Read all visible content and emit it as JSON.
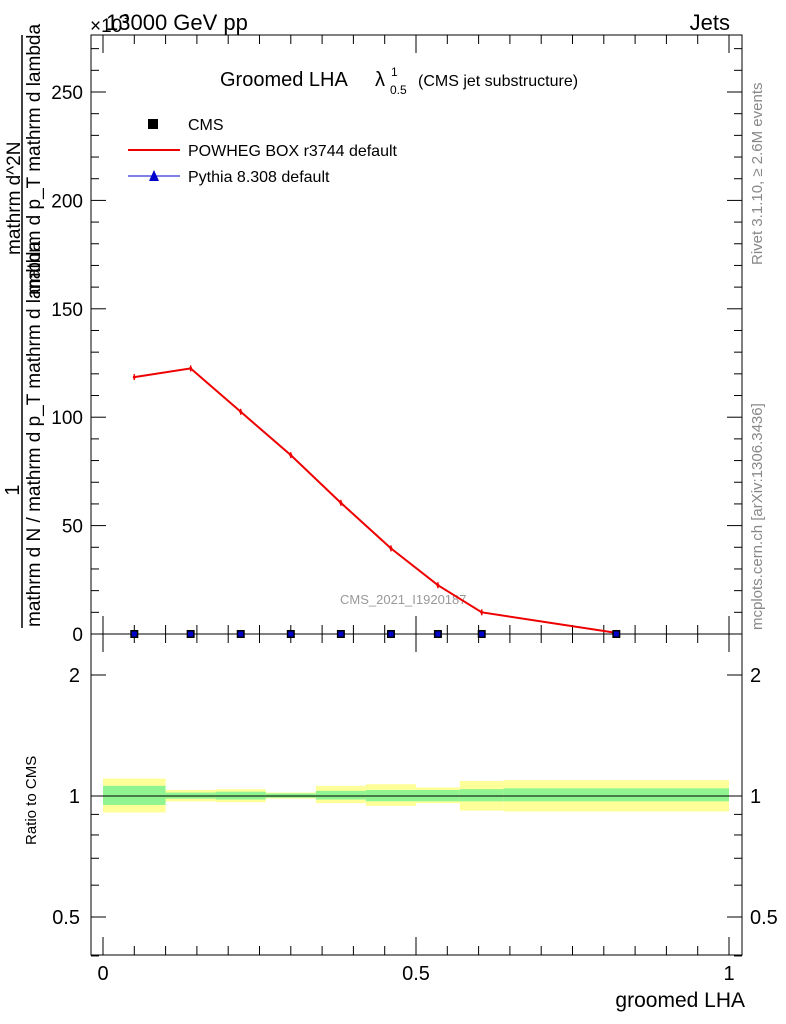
{
  "header": {
    "energy": "13000 GeV pp",
    "process": "Jets",
    "scale_prefix": "×10",
    "scale_exp": "3"
  },
  "side": {
    "rivet": "Rivet 3.1.10, ≥ 2.6M events",
    "mcplots": "mcplots.cern.ch [arXiv:1306.3436]"
  },
  "legend": {
    "title_main": "Groomed LHA",
    "title_lambda": "λ",
    "title_sup": "1",
    "title_sub": "0.5",
    "title_paren": "(CMS jet substructure)",
    "entries": [
      {
        "label": "CMS",
        "marker": "square"
      },
      {
        "label": "POWHEG BOX r3744 default",
        "marker": "line"
      },
      {
        "label": "Pythia 8.308 default",
        "marker": "triangle"
      }
    ]
  },
  "watermark": "CMS_2021_I1920187",
  "ylabel_top": {
    "one": "1",
    "den": "mathrm d N / mathrm d p_T mathrm d lambda",
    "num": "mathrm d^2N",
    "numtail": "mathrm d p_T mathrm d lambda"
  },
  "ylabel_bottom": "Ratio to CMS",
  "xlabel": "groomed LHA",
  "colors": {
    "powheg": "#ee0000",
    "pythia": "#0000cc",
    "band_inner": "#90f590",
    "band_outer": "#ffff99"
  },
  "chart_data": [
    {
      "type": "line",
      "title": "Groomed LHA λ^1_0.5 (CMS jet substructure)",
      "xlim": [
        0,
        1
      ],
      "ylim": [
        0,
        275
      ],
      "yscale_note": "×10^3",
      "yticks": [
        50,
        100,
        150,
        200,
        250
      ],
      "xticks": [
        0,
        0.5,
        1
      ],
      "series": [
        {
          "name": "POWHEG BOX r3744 default",
          "x": [
            0.05,
            0.14,
            0.22,
            0.3,
            0.38,
            0.46,
            0.535,
            0.605,
            0.82
          ],
          "y": [
            118.5,
            122.5,
            102.5,
            82.5,
            60.5,
            39.5,
            22.5,
            10,
            0.5
          ]
        },
        {
          "name": "CMS",
          "x": [
            0.05,
            0.14,
            0.22,
            0.3,
            0.38,
            0.46,
            0.535,
            0.605,
            0.82
          ],
          "y": [
            0,
            0,
            0,
            0,
            0,
            0,
            0,
            0,
            0
          ]
        }
      ]
    },
    {
      "type": "area",
      "ylabel": "Ratio to CMS",
      "xlabel": "groomed LHA",
      "xlim": [
        0,
        1
      ],
      "ylim": [
        0.35,
        2.3
      ],
      "yticks": [
        0.5,
        1,
        2
      ],
      "xticks": [
        0,
        0.5,
        1
      ],
      "bin_edges": [
        0,
        0.1,
        0.18,
        0.26,
        0.34,
        0.42,
        0.5,
        0.57,
        0.64,
        1.0
      ],
      "band_inner": {
        "lo": [
          0.95,
          0.985,
          0.98,
          0.99,
          0.98,
          0.97,
          0.97,
          0.97,
          0.97
        ],
        "hi": [
          1.06,
          1.02,
          1.025,
          1.015,
          1.03,
          1.035,
          1.035,
          1.04,
          1.045
        ]
      },
      "band_outer": {
        "lo": [
          0.91,
          0.97,
          0.965,
          0.985,
          0.96,
          0.945,
          0.96,
          0.92,
          0.915
        ],
        "hi": [
          1.105,
          1.035,
          1.04,
          1.02,
          1.06,
          1.07,
          1.05,
          1.09,
          1.095
        ]
      }
    }
  ]
}
